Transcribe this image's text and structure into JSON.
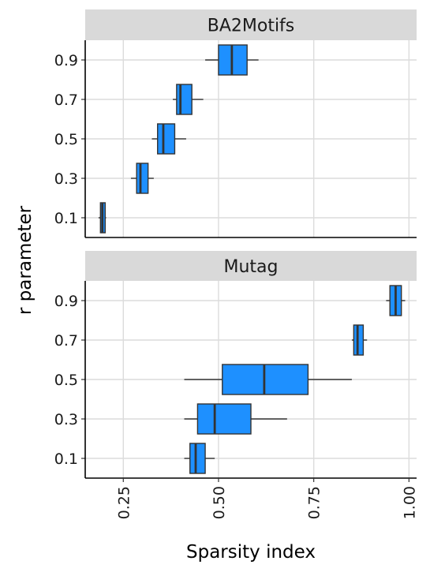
{
  "chart_data": {
    "type": "boxplot",
    "xlabel": "Sparsity index",
    "ylabel": "r parameter",
    "xlim": [
      0.15,
      1.02
    ],
    "x_ticks": [
      "0.25",
      "0.50",
      "0.75",
      "1.00"
    ],
    "x_tick_values": [
      0.25,
      0.5,
      0.75,
      1.0
    ],
    "categories": [
      "0.1",
      "0.3",
      "0.5",
      "0.7",
      "0.9"
    ],
    "grid": true,
    "box_color": "#1e90ff",
    "strip_color": "#d9d9d9",
    "grid_color": "#dcdcdc",
    "panels": [
      {
        "title": "BA2Motifs",
        "boxes": [
          {
            "r": "0.1",
            "min": 0.185,
            "q1": 0.19,
            "median": 0.195,
            "q3": 0.202,
            "max": 0.205
          },
          {
            "r": "0.3",
            "min": 0.27,
            "q1": 0.285,
            "median": 0.295,
            "q3": 0.315,
            "max": 0.33
          },
          {
            "r": "0.5",
            "min": 0.325,
            "q1": 0.34,
            "median": 0.355,
            "q3": 0.385,
            "max": 0.415
          },
          {
            "r": "0.7",
            "min": 0.38,
            "q1": 0.39,
            "median": 0.4,
            "q3": 0.43,
            "max": 0.46
          },
          {
            "r": "0.9",
            "min": 0.465,
            "q1": 0.5,
            "median": 0.535,
            "q3": 0.575,
            "max": 0.605
          }
        ]
      },
      {
        "title": "Mutag",
        "boxes": [
          {
            "r": "0.1",
            "min": 0.41,
            "q1": 0.425,
            "median": 0.44,
            "q3": 0.465,
            "max": 0.49
          },
          {
            "r": "0.3",
            "min": 0.41,
            "q1": 0.445,
            "median": 0.49,
            "q3": 0.585,
            "max": 0.68
          },
          {
            "r": "0.5",
            "min": 0.41,
            "q1": 0.51,
            "median": 0.62,
            "q3": 0.735,
            "max": 0.85
          },
          {
            "r": "0.7",
            "min": 0.85,
            "q1": 0.855,
            "median": 0.865,
            "q3": 0.88,
            "max": 0.89
          },
          {
            "r": "0.9",
            "min": 0.94,
            "q1": 0.95,
            "median": 0.965,
            "q3": 0.98,
            "max": 0.99
          }
        ]
      }
    ]
  }
}
